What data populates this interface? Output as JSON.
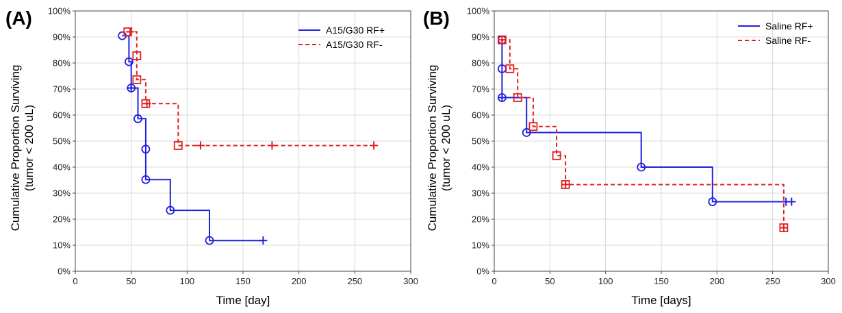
{
  "chart_data": [
    {
      "type": "line",
      "panel_label": "(A)",
      "xlabel": "Time [day]",
      "ylabel_line1": "Cumulative Proportion Surviving",
      "ylabel_line2": "(tumor < 200 uL)",
      "xlim": [
        0,
        300
      ],
      "ylim": [
        0,
        100
      ],
      "x_ticks": [
        "0",
        "50",
        "100",
        "150",
        "200",
        "250",
        "300"
      ],
      "y_ticks": [
        "0%",
        "10%",
        "20%",
        "30%",
        "40%",
        "50%",
        "60%",
        "70%",
        "80%",
        "90%",
        "100%"
      ],
      "grid": true,
      "legend_position": "top-right",
      "series": [
        {
          "name": "A15/G30 RF+",
          "color": "#1f1fe0",
          "style": "solid",
          "marker": "circle",
          "start": [
            42,
            90.5
          ],
          "steps": [
            [
              42,
              90.5
            ],
            [
              48,
              80.5
            ],
            [
              50,
              70.4
            ],
            [
              56,
              58.6
            ],
            [
              63,
              46.9
            ],
            [
              63,
              35.2
            ],
            [
              85,
              23.4
            ],
            [
              120,
              11.8
            ]
          ],
          "censored": [
            [
              50,
              70.4
            ],
            [
              168,
              11.8
            ]
          ],
          "end_x": 168
        },
        {
          "name": "A15/G30 RF-",
          "color": "#e02020",
          "style": "dashed",
          "marker": "square",
          "start": [
            47,
            92
          ],
          "steps": [
            [
              47,
              92
            ],
            [
              55,
              82.8
            ],
            [
              55,
              73.6
            ],
            [
              63,
              64.4
            ],
            [
              92,
              48.3
            ]
          ],
          "censored": [
            [
              49,
              92
            ],
            [
              64,
              64.4
            ],
            [
              112,
              48.3
            ],
            [
              176,
              48.3
            ],
            [
              267,
              48.3
            ]
          ],
          "end_x": 267
        }
      ]
    },
    {
      "type": "line",
      "panel_label": "(B)",
      "xlabel": "Time [days]",
      "ylabel_line1": "Cumulative Proportion Surviving",
      "ylabel_line2": "(tumor < 200 uL)",
      "xlim": [
        0,
        300
      ],
      "ylim": [
        0,
        100
      ],
      "x_ticks": [
        "0",
        "50",
        "100",
        "150",
        "200",
        "250",
        "300"
      ],
      "y_ticks": [
        "0%",
        "10%",
        "20%",
        "30%",
        "40%",
        "50%",
        "60%",
        "70%",
        "80%",
        "90%",
        "100%"
      ],
      "grid": true,
      "legend_position": "top-right",
      "series": [
        {
          "name": "Saline RF+",
          "color": "#1f1fe0",
          "style": "solid",
          "marker": "circle",
          "start": [
            7,
            88.9
          ],
          "steps": [
            [
              7,
              88.9
            ],
            [
              7,
              77.8
            ],
            [
              7,
              66.7
            ],
            [
              29,
              53.3
            ],
            [
              132,
              40
            ],
            [
              196,
              26.7
            ]
          ],
          "censored": [
            [
              7,
              66.7
            ],
            [
              262,
              26.7
            ],
            [
              267,
              26.7
            ]
          ],
          "end_x": 267
        },
        {
          "name": "Saline RF-",
          "color": "#e02020",
          "style": "dashed",
          "marker": "square",
          "start": [
            7,
            88.9
          ],
          "steps": [
            [
              7,
              88.9
            ],
            [
              14,
              77.8
            ],
            [
              21,
              66.7
            ],
            [
              35,
              55.6
            ],
            [
              56,
              44.4
            ],
            [
              64,
              33.3
            ],
            [
              260,
              16.7
            ]
          ],
          "censored": [
            [
              7,
              88.9
            ],
            [
              64,
              33.3
            ],
            [
              260,
              16.7
            ]
          ],
          "end_x": 260
        }
      ]
    }
  ]
}
